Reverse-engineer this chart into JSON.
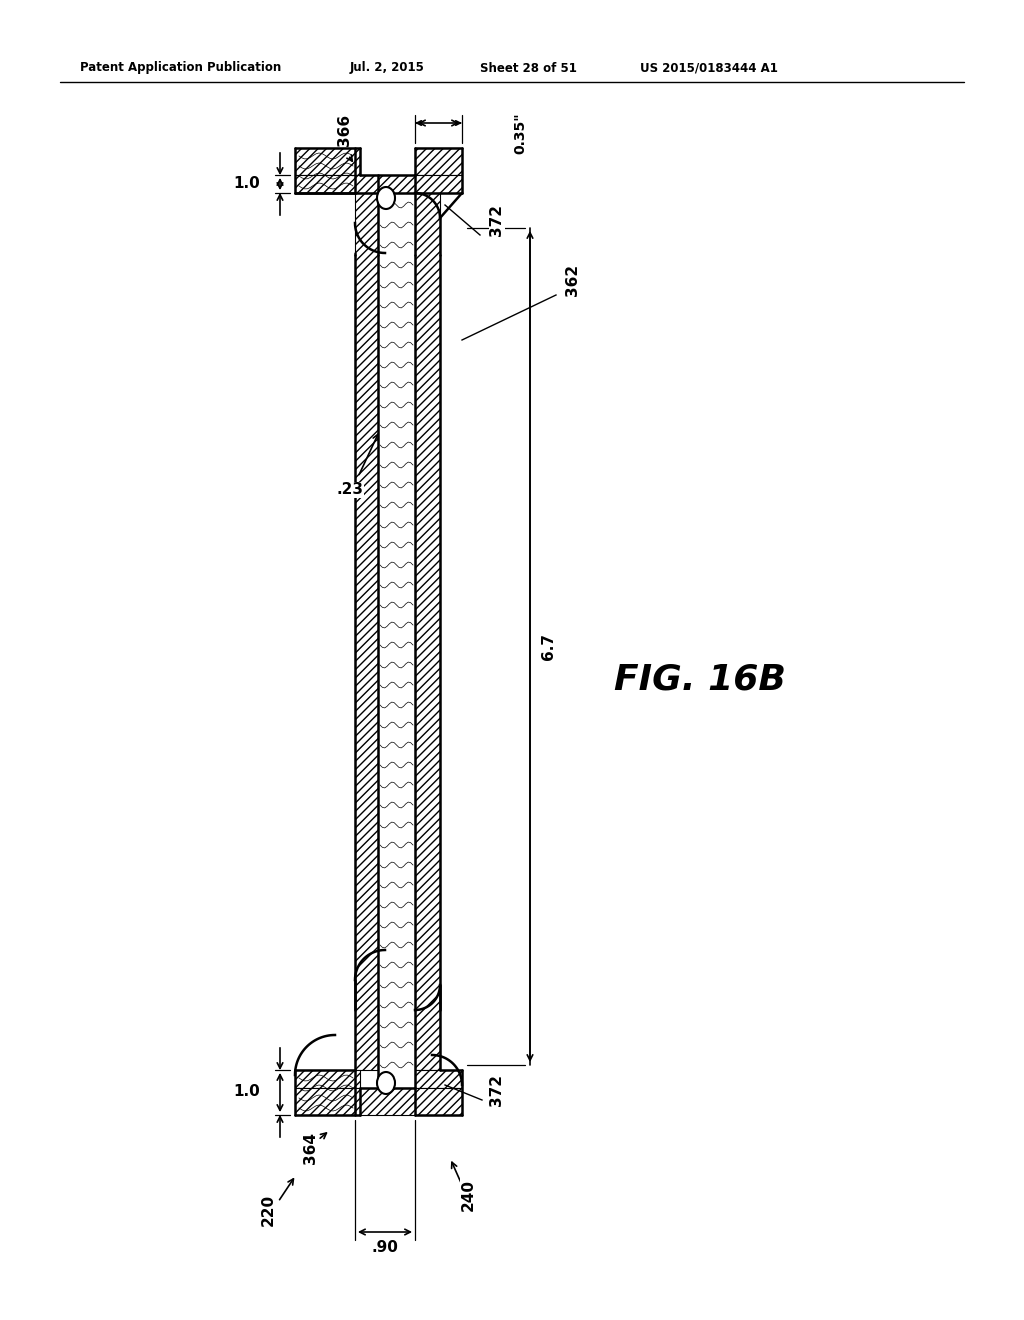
{
  "bg_color": "#ffffff",
  "header_text": "Patent Application Publication",
  "header_date": "Jul. 2, 2015",
  "header_sheet": "Sheet 28 of 51",
  "header_patent": "US 2015/0183444 A1",
  "fig_label": "FIG. 16B",
  "line_color": "#000000",
  "hatch_color": "#000000",
  "lw_main": 1.6,
  "lw_dim": 1.2,
  "fontsize_label": 11,
  "fontsize_dim": 10,
  "fontsize_fig": 26
}
